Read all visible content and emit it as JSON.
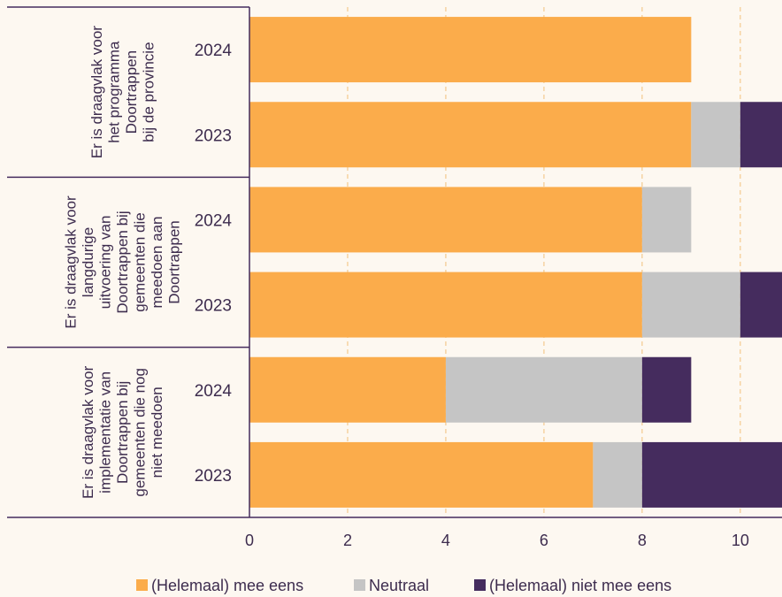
{
  "chart_data": {
    "type": "bar",
    "orientation": "horizontal",
    "stacked": true,
    "xlim": [
      0,
      10.85
    ],
    "xticks": [
      0,
      2,
      4,
      6,
      8,
      10
    ],
    "grid": "vertical-dashed",
    "legend_position": "bottom",
    "colors": {
      "mee_eens": "#fbac4b",
      "neutraal": "#c5c5c5",
      "niet_mee_eens": "#452c5e"
    },
    "legend": [
      {
        "key": "mee_eens",
        "label": "(Helemaal) mee eens"
      },
      {
        "key": "neutraal",
        "label": "Neutraal"
      },
      {
        "key": "niet_mee_eens",
        "label": "(Helemaal) niet mee eens"
      }
    ],
    "groups": [
      {
        "label_lines": [
          "Er is draagvlak voor",
          "het programma",
          "Doortrappen",
          "bij de provincie"
        ],
        "rows": [
          {
            "year": "2024",
            "mee_eens": 9,
            "neutraal": 0,
            "niet_mee_eens": 0
          },
          {
            "year": "2023",
            "mee_eens": 9,
            "neutraal": 1,
            "niet_mee_eens": 1
          }
        ]
      },
      {
        "label_lines": [
          "Er is draagvlak voor",
          "langdurige",
          "uitvoering van",
          "Doortrappen bij",
          "gemeenten die",
          "meedoen aan",
          "Doortrappen"
        ],
        "rows": [
          {
            "year": "2024",
            "mee_eens": 8,
            "neutraal": 1,
            "niet_mee_eens": 0
          },
          {
            "year": "2023",
            "mee_eens": 8,
            "neutraal": 2,
            "niet_mee_eens": 1
          }
        ]
      },
      {
        "label_lines": [
          "Er is draagvlak voor",
          "implementatie van",
          "Doortrappen bij",
          "gemeenten die nog",
          "niet meedoen"
        ],
        "rows": [
          {
            "year": "2024",
            "mee_eens": 4,
            "neutraal": 4,
            "niet_mee_eens": 1
          },
          {
            "year": "2023",
            "mee_eens": 7,
            "neutraal": 1,
            "niet_mee_eens": 3
          }
        ]
      }
    ]
  }
}
